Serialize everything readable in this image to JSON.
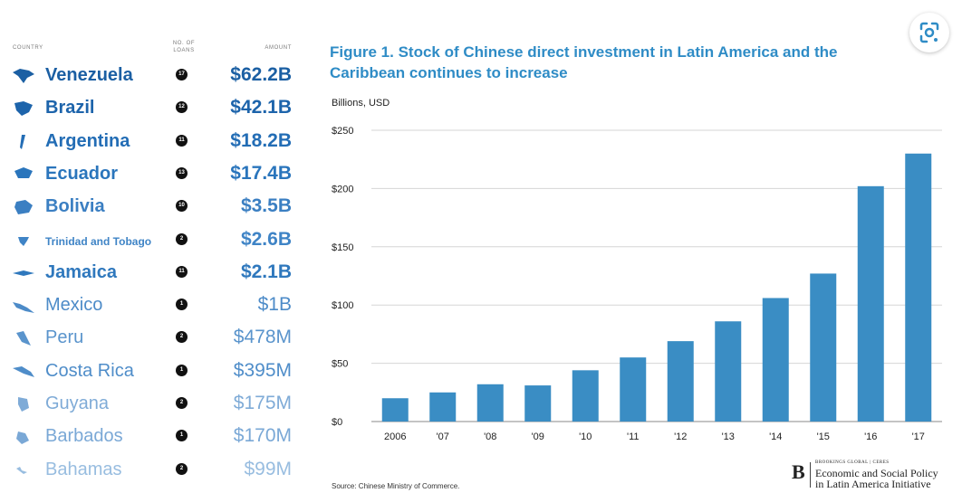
{
  "table": {
    "headers": {
      "country": "COUNTRY",
      "loans": "NO. OF LOANS",
      "amount": "AMOUNT"
    },
    "rows": [
      {
        "country": "Venezuela",
        "loans": "17",
        "amount": "$62.2B",
        "color": "#1b5fa3"
      },
      {
        "country": "Brazil",
        "loans": "12",
        "amount": "$42.1B",
        "color": "#1d64ab"
      },
      {
        "country": "Argentina",
        "loans": "11",
        "amount": "$18.2B",
        "color": "#236db5"
      },
      {
        "country": "Ecuador",
        "loans": "13",
        "amount": "$17.4B",
        "color": "#2a75bc"
      },
      {
        "country": "Bolivia",
        "loans": "10",
        "amount": "$3.5B",
        "color": "#3b7fc2"
      },
      {
        "country": "Trinidad and Tobago",
        "loans": "2",
        "amount": "$2.6B",
        "color": "#3f84c6"
      },
      {
        "country": "Jamaica",
        "loans": "11",
        "amount": "$2.1B",
        "color": "#2f78bd"
      },
      {
        "country": "Mexico",
        "loans": "1",
        "amount": "$1B",
        "color": "#4d8bc8"
      },
      {
        "country": "Peru",
        "loans": "2",
        "amount": "$478M",
        "color": "#5a94cc"
      },
      {
        "country": "Costa Rica",
        "loans": "1",
        "amount": "$395M",
        "color": "#4f8dc9"
      },
      {
        "country": "Guyana",
        "loans": "2",
        "amount": "$175M",
        "color": "#7fabd7"
      },
      {
        "country": "Barbados",
        "loans": "1",
        "amount": "$170M",
        "color": "#7aa8d6"
      },
      {
        "country": "Bahamas",
        "loans": "2",
        "amount": "$99M",
        "color": "#98bde0"
      }
    ]
  },
  "chart_data": {
    "type": "bar",
    "title": "Figure 1. Stock of Chinese direct investment in Latin America and the Caribbean continues to increase",
    "ylabel": "Billions, USD",
    "categories": [
      "2006",
      "'07",
      "'08",
      "'09",
      "'10",
      "'11",
      "'12",
      "'13",
      "'14",
      "'15",
      "'16",
      "'17"
    ],
    "values": [
      20,
      25,
      32,
      31,
      44,
      55,
      69,
      86,
      106,
      127,
      202,
      230
    ],
    "ylim": [
      0,
      250
    ],
    "yticks": [
      0,
      50,
      100,
      150,
      200,
      250
    ],
    "ytick_labels": [
      "$0",
      "$50",
      "$100",
      "$150",
      "$200",
      "$250"
    ],
    "grid": true,
    "bar_color": "#3a8dc4",
    "source": "Source: Chinese Ministry of Commerce."
  },
  "logo": {
    "mark": "B",
    "brand": "BROOKINGS GLOBAL | CERES",
    "line1": "Economic and Social Policy",
    "line2": "in Latin America Initiative"
  },
  "overlay": {
    "icon": "lens-icon"
  }
}
